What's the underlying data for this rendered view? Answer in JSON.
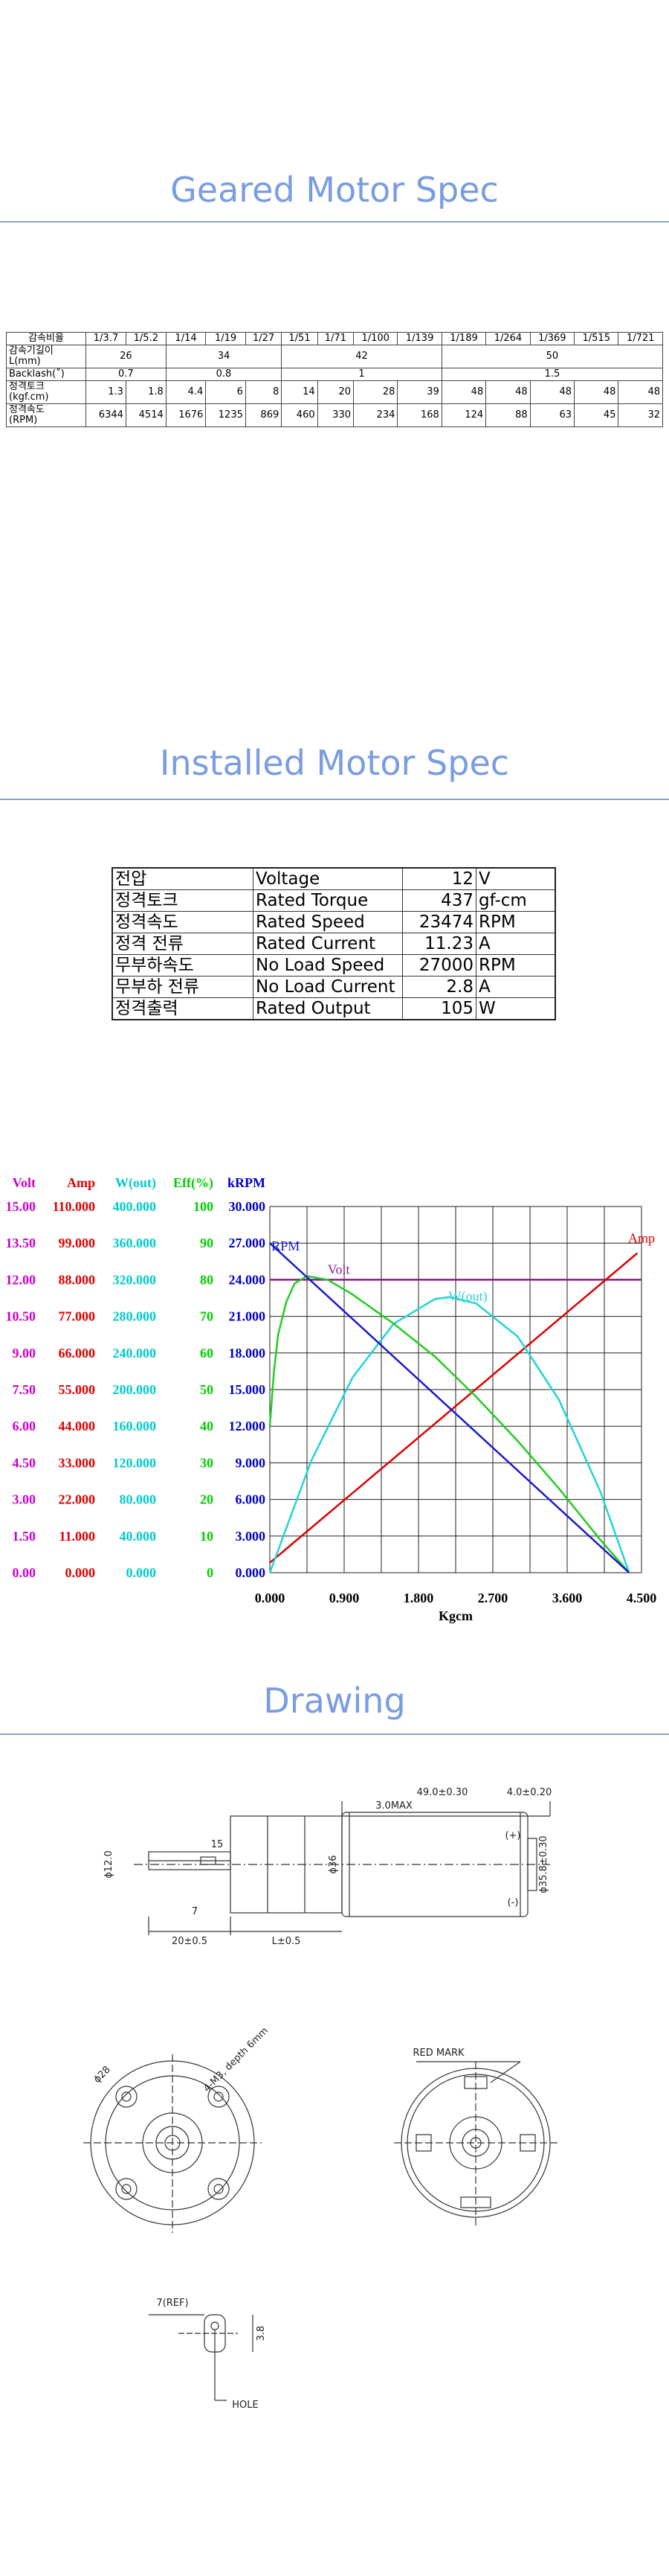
{
  "geared_section": {
    "title": "Geared Motor Spec",
    "table": {
      "header": [
        "감속비율",
        "1/3.7",
        "1/5.2",
        "1/14",
        "1/19",
        "1/27",
        "1/51",
        "1/71",
        "1/100",
        "1/139",
        "1/189",
        "1/264",
        "1/369",
        "1/515",
        "1/721"
      ],
      "rows": [
        {
          "label": "감속기길이\nL(mm)",
          "cells": [
            {
              "text": 26,
              "span": 2
            },
            {
              "text": 34,
              "span": 3
            },
            {
              "text": 42,
              "span": 4
            },
            {
              "text": 50,
              "span": 5
            }
          ]
        },
        {
          "label": "Backlash(˚)",
          "cells": [
            {
              "text": 0.7,
              "span": 2
            },
            {
              "text": 0.8,
              "span": 3
            },
            {
              "text": 1,
              "span": 4
            },
            {
              "text": 1.5,
              "span": 5
            }
          ]
        },
        {
          "label": "정격토크\n(kgf.cm)",
          "cells": [
            {
              "text": 1.3
            },
            {
              "text": 1.8
            },
            {
              "text": 4.4
            },
            {
              "text": 6
            },
            {
              "text": 8
            },
            {
              "text": 14
            },
            {
              "text": 20
            },
            {
              "text": 28
            },
            {
              "text": 39
            },
            {
              "text": 48
            },
            {
              "text": 48
            },
            {
              "text": 48
            },
            {
              "text": 48
            },
            {
              "text": 48
            }
          ]
        },
        {
          "label": "정격속도\n(RPM)",
          "cells": [
            {
              "text": 6344
            },
            {
              "text": 4514
            },
            {
              "text": 1676
            },
            {
              "text": 1235
            },
            {
              "text": 869
            },
            {
              "text": 460
            },
            {
              "text": 330
            },
            {
              "text": 234
            },
            {
              "text": 168
            },
            {
              "text": 124
            },
            {
              "text": 88
            },
            {
              "text": 63
            },
            {
              "text": 45
            },
            {
              "text": 32
            }
          ]
        }
      ]
    }
  },
  "installed_section": {
    "title": "Installed Motor Spec",
    "table": {
      "rows": [
        [
          "전압",
          "Voltage",
          12,
          "V"
        ],
        [
          "정격토크",
          "Rated Torque",
          437,
          "gf-cm"
        ],
        [
          "정격속도",
          "Rated Speed",
          23474,
          "RPM"
        ],
        [
          "정격 전류",
          "Rated Current",
          11.23,
          "A"
        ],
        [
          "무부하속도",
          "No Load Speed",
          27000,
          "RPM"
        ],
        [
          "무부하 전류",
          "No Load Current",
          2.8,
          "A"
        ],
        [
          "정격출력",
          "Rated Output",
          105,
          "W"
        ]
      ]
    }
  },
  "chart_data": {
    "type": "line",
    "x_label": "Kgcm",
    "xlim": [
      0,
      4.5
    ],
    "xticks": [
      {
        "value": 0,
        "label": "0.000"
      },
      {
        "value": 0.9,
        "label": "0.900"
      },
      {
        "value": 1.8,
        "label": "1.800"
      },
      {
        "value": 2.7,
        "label": "2.700"
      },
      {
        "value": 3.6,
        "label": "3.600"
      },
      {
        "value": 4.5,
        "label": "4.500"
      }
    ],
    "grid": true,
    "series": [
      {
        "name": "Volt",
        "label": "Volt",
        "color": "#cc00cc",
        "line_color": "#8b1a8b",
        "x": [
          0,
          4.5
        ],
        "values": [
          12,
          12
        ],
        "ylim": [
          0,
          15
        ],
        "yticks": [
          {
            "value": 0,
            "label": "0.00"
          },
          {
            "value": 1.5,
            "label": "1.50"
          },
          {
            "value": 3,
            "label": "3.00"
          },
          {
            "value": 4.5,
            "label": "4.50"
          },
          {
            "value": 6,
            "label": "6.00"
          },
          {
            "value": 7.5,
            "label": "7.50"
          },
          {
            "value": 9,
            "label": "9.00"
          },
          {
            "value": 10.5,
            "label": "10.50"
          },
          {
            "value": 12,
            "label": "12.00"
          },
          {
            "value": 13.5,
            "label": "13.50"
          },
          {
            "value": 15,
            "label": "15.00"
          }
        ]
      },
      {
        "name": "Amp",
        "label": "Amp",
        "color": "#e00000",
        "line_color": "#e00000",
        "x": [
          0,
          4.45
        ],
        "values": [
          3,
          96
        ],
        "ylim": [
          0,
          110
        ],
        "yticks": [
          {
            "value": 0,
            "label": "0.000"
          },
          {
            "value": 11,
            "label": "11.000"
          },
          {
            "value": 22,
            "label": "22.000"
          },
          {
            "value": 33,
            "label": "33.000"
          },
          {
            "value": 44,
            "label": "44.000"
          },
          {
            "value": 55,
            "label": "55.000"
          },
          {
            "value": 66,
            "label": "66.000"
          },
          {
            "value": 77,
            "label": "77.000"
          },
          {
            "value": 88,
            "label": "88.000"
          },
          {
            "value": 99,
            "label": "99.000"
          },
          {
            "value": 110,
            "label": "110.000"
          }
        ]
      },
      {
        "name": "W(out)",
        "label": "W(out)",
        "color": "#00cccc",
        "line_color": "#22d4d4",
        "x": [
          0,
          0.5,
          1,
          1.5,
          2,
          2.175,
          2.5,
          3,
          3.5,
          4,
          4.35
        ],
        "values": [
          0,
          122,
          213,
          272,
          299,
          301,
          294,
          258,
          189,
          89,
          0
        ],
        "ylim": [
          0,
          400
        ],
        "yticks": [
          {
            "value": 0,
            "label": "0.000"
          },
          {
            "value": 40,
            "label": "40.000"
          },
          {
            "value": 80,
            "label": "80.000"
          },
          {
            "value": 120,
            "label": "120.000"
          },
          {
            "value": 160,
            "label": "160.000"
          },
          {
            "value": 200,
            "label": "200.000"
          },
          {
            "value": 240,
            "label": "240.000"
          },
          {
            "value": 280,
            "label": "280.000"
          },
          {
            "value": 320,
            "label": "320.000"
          },
          {
            "value": 360,
            "label": "360.000"
          },
          {
            "value": 400,
            "label": "400.000"
          }
        ]
      },
      {
        "name": "Eff(%)",
        "label": null,
        "color": "#00cc00",
        "line_color": "#22cc22",
        "x": [
          0,
          0.05,
          0.1,
          0.2,
          0.3,
          0.45,
          0.7,
          1,
          1.5,
          2,
          2.5,
          3,
          3.5,
          4,
          4.35
        ],
        "values": [
          40,
          55,
          65,
          74,
          79,
          81,
          80,
          76,
          68,
          59,
          48,
          36,
          23,
          9,
          0
        ],
        "ylim": [
          0,
          100
        ],
        "yticks": [
          0,
          10,
          20,
          30,
          40,
          50,
          60,
          70,
          80,
          90,
          100
        ]
      },
      {
        "name": "kRPM",
        "label": "RPM",
        "color": "#0000cc",
        "line_color": "#1a1acc",
        "x": [
          0,
          4.35
        ],
        "values": [
          27,
          0
        ],
        "ylim": [
          0,
          30
        ],
        "yticks": [
          {
            "value": 0,
            "label": "0.000"
          },
          {
            "value": 3,
            "label": "3.000"
          },
          {
            "value": 6,
            "label": "6.000"
          },
          {
            "value": 9,
            "label": "9.000"
          },
          {
            "value": 12,
            "label": "12.000"
          },
          {
            "value": 15,
            "label": "15.000"
          },
          {
            "value": 18,
            "label": "18.000"
          },
          {
            "value": 21,
            "label": "21.000"
          },
          {
            "value": 24,
            "label": "24.000"
          },
          {
            "value": 27,
            "label": "27.000"
          },
          {
            "value": 30,
            "label": "30.000"
          }
        ]
      }
    ]
  },
  "drawing_section": {
    "title": "Drawing",
    "labels": [
      "49.0±0.30",
      "4.0±0.20",
      "3.0MAX",
      "15",
      "ɸ12.0",
      "ɸ36",
      "7",
      "20±0.5",
      "L±0.5",
      "ɸ35.8±0.30",
      "ɸ28",
      "4-M3, depth 6mm",
      "RED MARK",
      "7(REF)",
      "3.8",
      "HOLE",
      "(+)",
      "(-)"
    ]
  }
}
